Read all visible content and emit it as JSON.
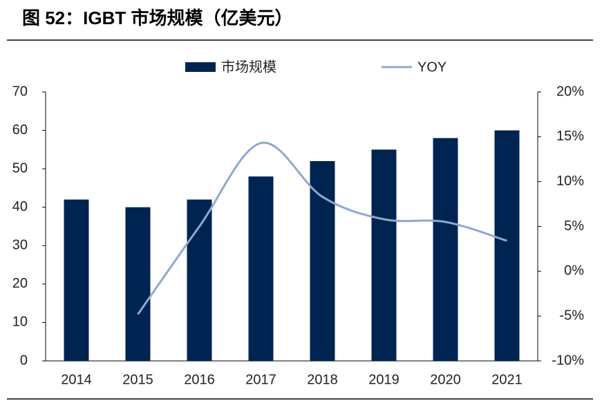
{
  "chart_data": {
    "type": "bar-line",
    "title": "图 52：IGBT 市场规模（亿美元）",
    "categories": [
      "2014",
      "2015",
      "2016",
      "2017",
      "2018",
      "2019",
      "2020",
      "2021"
    ],
    "series": [
      {
        "name": "市场规模",
        "type": "bar",
        "color": "#002451",
        "values": [
          42,
          40,
          42,
          48,
          52,
          55,
          58,
          60
        ]
      },
      {
        "name": "YOY",
        "type": "line",
        "axis": "y2",
        "color": "#8fa8d0",
        "values": [
          null,
          -4.8,
          5,
          14.3,
          8.3,
          5.8,
          5.5,
          3.4
        ]
      }
    ],
    "ylim": [
      0,
      70
    ],
    "yticks": [
      0,
      10,
      20,
      30,
      40,
      50,
      60,
      70
    ],
    "y2lim": [
      -10,
      20
    ],
    "y2ticks": [
      {
        "value": -10,
        "label": "-10%"
      },
      {
        "value": -5,
        "label": "-5%"
      },
      {
        "value": 0,
        "label": "0%"
      },
      {
        "value": 5,
        "label": "5%"
      },
      {
        "value": 10,
        "label": "10%"
      },
      {
        "value": 15,
        "label": "15%"
      },
      {
        "value": 20,
        "label": "20%"
      }
    ],
    "grid": false,
    "legend": "top"
  }
}
